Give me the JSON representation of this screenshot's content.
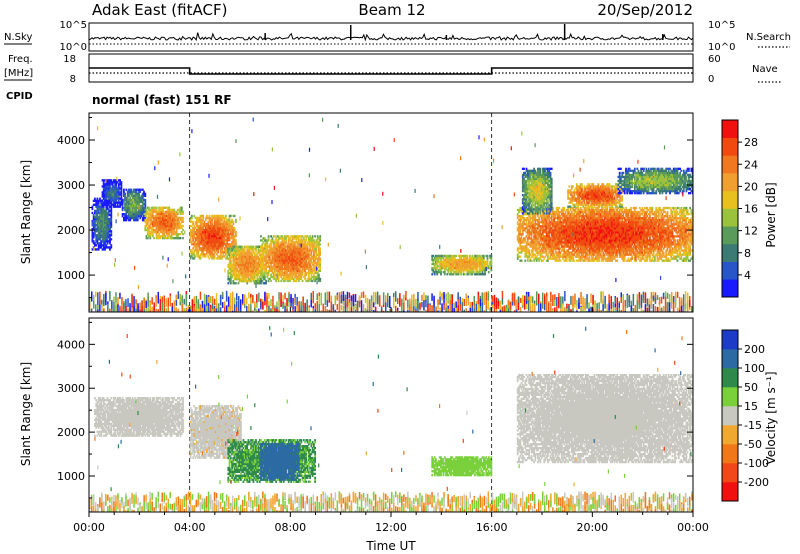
{
  "header": {
    "title_left": "Adak East (fitACF)",
    "title_center": "Beam 12",
    "title_right": "20/Sep/2012"
  },
  "noise_panel": {
    "left_label": "N.Sky",
    "left_ticks": [
      "10^5",
      "10^0"
    ],
    "right_label": "N.Search",
    "right_ticks": [
      "10^5",
      "10^0"
    ]
  },
  "freq_panel": {
    "left_label_1": "Freq.",
    "left_label_2": "[MHz]",
    "left_ticks": [
      "18",
      "8"
    ],
    "right_label": "Nave",
    "right_ticks": [
      "60",
      "0"
    ],
    "cpid_label": "CPID",
    "mode_text": "normal (fast) 151 RF"
  },
  "power_panel": {
    "ylabel": "Slant Range [km]",
    "yticks": [
      "4000",
      "3000",
      "2000",
      "1000"
    ],
    "colorbar_label": "Power [dB]",
    "colorbar_ticks": [
      "28",
      "24",
      "20",
      "16",
      "12",
      "8",
      "4"
    ],
    "colors": [
      "#1a1aff",
      "#2855c8",
      "#3c7a74",
      "#5a9a5a",
      "#9ac23c",
      "#e8c020",
      "#f0a030",
      "#f07820",
      "#f04a10",
      "#f01010"
    ]
  },
  "velocity_panel": {
    "ylabel": "Slant Range [km]",
    "yticks": [
      "4000",
      "3000",
      "2000",
      "1000"
    ],
    "colorbar_label": "Velocity [m s⁻¹]",
    "colorbar_ticks": [
      "200",
      "100",
      "50",
      "15",
      "-15",
      "-50",
      "-100",
      "-200"
    ],
    "colors": [
      "#1c3cc8",
      "#2c6aa4",
      "#2e8a4a",
      "#7ad03a",
      "#c8c8c0",
      "#f0a830",
      "#f07818",
      "#f04818",
      "#f01010"
    ]
  },
  "xaxis": {
    "label": "Time UT",
    "ticks": [
      "00:00",
      "04:00",
      "08:00",
      "12:00",
      "16:00",
      "20:00",
      "00:00"
    ]
  },
  "chart_data": {
    "type": "heatmap",
    "x_unit": "hours UT",
    "x_range": [
      0,
      24
    ],
    "y_range_km": [
      180,
      4600
    ],
    "frequency_MHz": [
      {
        "start": 0,
        "end": 4,
        "value": 13
      },
      {
        "start": 4,
        "end": 16,
        "value": 10
      },
      {
        "start": 16,
        "end": 24,
        "value": 13
      }
    ],
    "power_regions": [
      {
        "t0": 0.1,
        "t1": 0.9,
        "r0": 1550,
        "r1": 2700,
        "dB": 9
      },
      {
        "t0": 0.5,
        "t1": 1.3,
        "r0": 2500,
        "r1": 3100,
        "dB": 7
      },
      {
        "t0": 1.3,
        "t1": 2.2,
        "r0": 2200,
        "r1": 2900,
        "dB": 12
      },
      {
        "t0": 2.2,
        "t1": 3.7,
        "r0": 1800,
        "r1": 2500,
        "dB": 24
      },
      {
        "t0": 4.0,
        "t1": 5.8,
        "r0": 1350,
        "r1": 2300,
        "dB": 26
      },
      {
        "t0": 5.5,
        "t1": 7.0,
        "r0": 800,
        "r1": 1650,
        "dB": 22
      },
      {
        "t0": 6.8,
        "t1": 9.2,
        "r0": 850,
        "r1": 1850,
        "dB": 24
      },
      {
        "t0": 13.6,
        "t1": 16.0,
        "r0": 1000,
        "r1": 1450,
        "dB": 20
      },
      {
        "t0": 17.0,
        "t1": 24.0,
        "r0": 1300,
        "r1": 2500,
        "dB": 27
      },
      {
        "t0": 17.2,
        "t1": 18.4,
        "r0": 2350,
        "r1": 3350,
        "dB": 16
      },
      {
        "t0": 19.0,
        "t1": 21.2,
        "r0": 2500,
        "r1": 3000,
        "dB": 26
      },
      {
        "t0": 21.0,
        "t1": 24.0,
        "r0": 2800,
        "r1": 3350,
        "dB": 14
      }
    ],
    "velocity_regions": [
      {
        "t0": 0.2,
        "t1": 3.7,
        "r0": 1900,
        "r1": 2800,
        "v": 0
      },
      {
        "t0": 4.0,
        "t1": 6.0,
        "r0": 1400,
        "r1": 2600,
        "v": -10
      },
      {
        "t0": 5.5,
        "t1": 9.0,
        "r0": 850,
        "r1": 1800,
        "v": 60
      },
      {
        "t0": 6.8,
        "t1": 8.3,
        "r0": 900,
        "r1": 1750,
        "v": 150
      },
      {
        "t0": 13.6,
        "t1": 16.0,
        "r0": 1000,
        "r1": 1450,
        "v": 30
      },
      {
        "t0": 17.0,
        "t1": 24.0,
        "r0": 1300,
        "r1": 3300,
        "v": 0
      }
    ]
  }
}
